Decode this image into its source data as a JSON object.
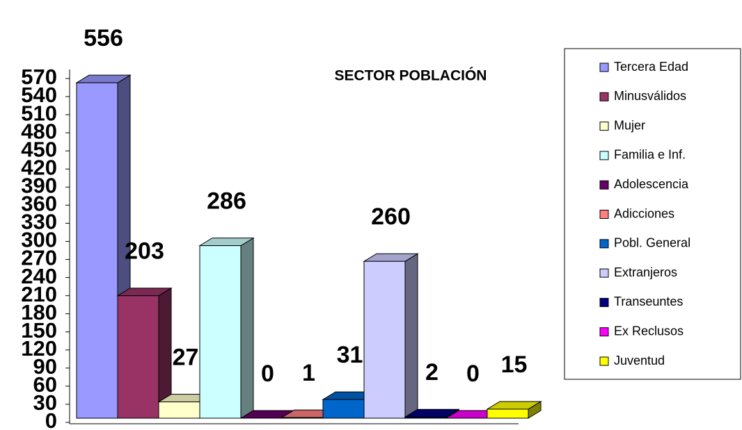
{
  "chart_data": {
    "type": "bar3d",
    "title": "SECTOR POBLACIÓN",
    "series": [
      {
        "name": "Tercera Edad",
        "color": "#9999ff",
        "values": [
          556
        ]
      },
      {
        "name": "Minusválidos",
        "color": "#993366",
        "values": [
          203
        ]
      },
      {
        "name": "Mujer",
        "color": "#ffffcc",
        "values": [
          27
        ]
      },
      {
        "name": "Familia e Inf.",
        "color": "#ccffff",
        "values": [
          286
        ]
      },
      {
        "name": "Adolescencia",
        "color": "#660066",
        "values": [
          0
        ]
      },
      {
        "name": "Adicciones",
        "color": "#ff8080",
        "values": [
          1
        ]
      },
      {
        "name": "Pobl. General",
        "color": "#0066cc",
        "values": [
          31
        ]
      },
      {
        "name": "Extranjeros",
        "color": "#ccccff",
        "values": [
          260
        ]
      },
      {
        "name": "Transeuntes",
        "color": "#000080",
        "values": [
          2
        ]
      },
      {
        "name": "Ex Reclusos",
        "color": "#ff00ff",
        "values": [
          0
        ]
      },
      {
        "name": "Juventud",
        "color": "#ffff00",
        "values": [
          15
        ]
      }
    ],
    "ylim": [
      0,
      570
    ],
    "yticks": [
      0,
      30,
      60,
      90,
      120,
      150,
      180,
      210,
      240,
      270,
      300,
      330,
      360,
      390,
      420,
      450,
      480,
      510,
      540,
      570
    ],
    "legend": "right"
  }
}
